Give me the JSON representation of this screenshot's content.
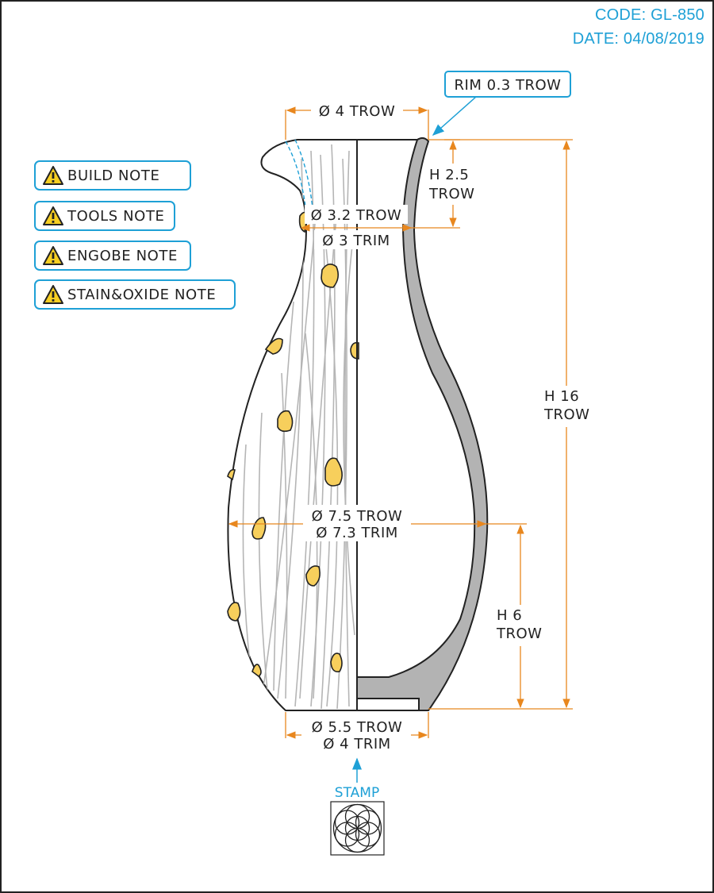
{
  "header": {
    "code": "CODE: GL-850",
    "date": "DATE: 04/08/2019"
  },
  "notes": [
    {
      "label": "BUILD NOTE",
      "icon": "warning-icon"
    },
    {
      "label": "TOOLS NOTE",
      "icon": "warning-icon"
    },
    {
      "label": "ENGOBE NOTE",
      "icon": "warning-icon"
    },
    {
      "label": "STAIN&OXIDE NOTE",
      "icon": "warning-icon"
    }
  ],
  "callouts": {
    "rim": "RIM 0.3 TROW",
    "stamp": "STAMP"
  },
  "dimensions": {
    "top_diameter": "Ø 4 TROW",
    "neck_height_line1": "H 2.5",
    "neck_height_line2": "TROW",
    "neck_trow": "Ø 3.2 TROW",
    "neck_trim": "Ø 3 TRIM",
    "belly_trow": "Ø 7.5 TROW",
    "belly_trim": "Ø 7.3 TRIM",
    "total_height_line1": "H 16",
    "total_height_line2": "TROW",
    "lower_height_line1": "H 6",
    "lower_height_line2": "TROW",
    "base_trow": "Ø 5.5 TROW",
    "base_trim": "Ø 4 TRIM"
  },
  "colors": {
    "dimension": "#e8871e",
    "callout": "#1ea0d6",
    "wall_section": "#b3b3b3",
    "glaze_spot": "#f7cf5c",
    "outline": "#222222"
  }
}
